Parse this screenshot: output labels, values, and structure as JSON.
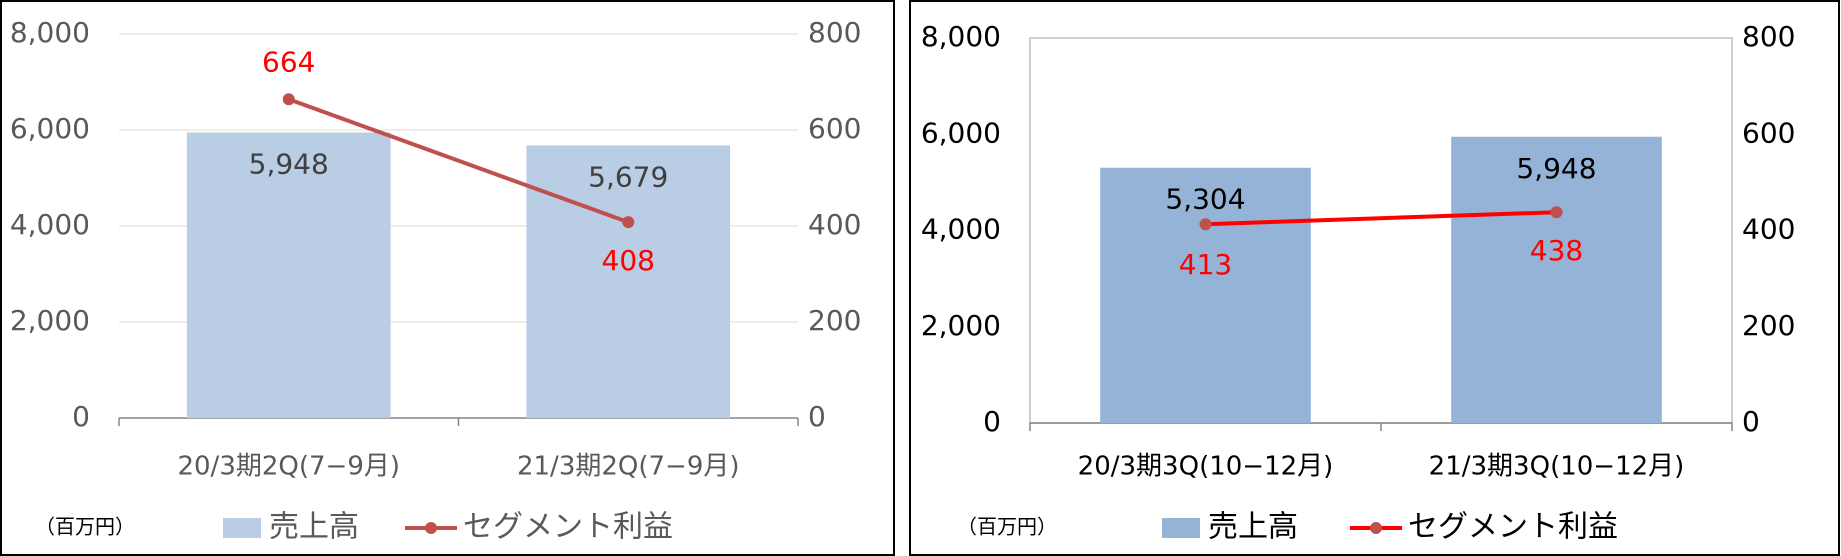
{
  "chart_data": [
    {
      "type": "bar_line",
      "unit_label": "（百万円）",
      "categories": [
        "20/3期2Q(7−9月)",
        "21/3期2Q(7−9月)"
      ],
      "series": [
        {
          "name": "売上高",
          "type": "bar",
          "color": "#b9cde5",
          "values": [
            5948,
            5679
          ],
          "value_labels": [
            "5,948",
            "5,679"
          ]
        },
        {
          "name": "セグメント利益",
          "type": "line",
          "axis": "y2",
          "color": "#c0504d",
          "values": [
            664,
            408
          ]
        }
      ],
      "ylim": [
        0,
        8000
      ],
      "yticks": [
        0,
        {
          "value": 2000,
          "label": "2,000"
        },
        {
          "value": 4000,
          "label": "4,000"
        },
        {
          "value": 6000,
          "label": "6,000"
        },
        {
          "value": 8000,
          "label": "8,000"
        }
      ],
      "y2lim": [
        0,
        800
      ],
      "y2ticks": [
        0,
        200,
        400,
        600,
        800
      ],
      "grid": true,
      "text_color": "#595959",
      "value_label_color": "#404040",
      "line_label_color": "#ff0000"
    },
    {
      "type": "bar_line",
      "unit_label": "（百万円）",
      "categories": [
        "20/3期3Q(10−12月)",
        "21/3期3Q(10−12月)"
      ],
      "series": [
        {
          "name": "売上高",
          "type": "bar",
          "color": "#95b3d7",
          "values": [
            5304,
            5948
          ],
          "value_labels": [
            "5,304",
            "5,948"
          ]
        },
        {
          "name": "セグメント利益",
          "type": "line",
          "axis": "y2",
          "color": "#ff0000",
          "values": [
            413,
            438
          ]
        }
      ],
      "ylim": [
        0,
        8000
      ],
      "yticks": [
        0,
        {
          "value": 2000,
          "label": "2,000"
        },
        {
          "value": 4000,
          "label": "4,000"
        },
        {
          "value": 6000,
          "label": "6,000"
        },
        {
          "value": 8000,
          "label": "8,000"
        }
      ],
      "y2lim": [
        0,
        800
      ],
      "y2ticks": [
        0,
        200,
        400,
        600,
        800
      ],
      "grid": false,
      "text_color": "#000000",
      "value_label_color": "#000000",
      "line_label_color": "#ff0000"
    }
  ]
}
